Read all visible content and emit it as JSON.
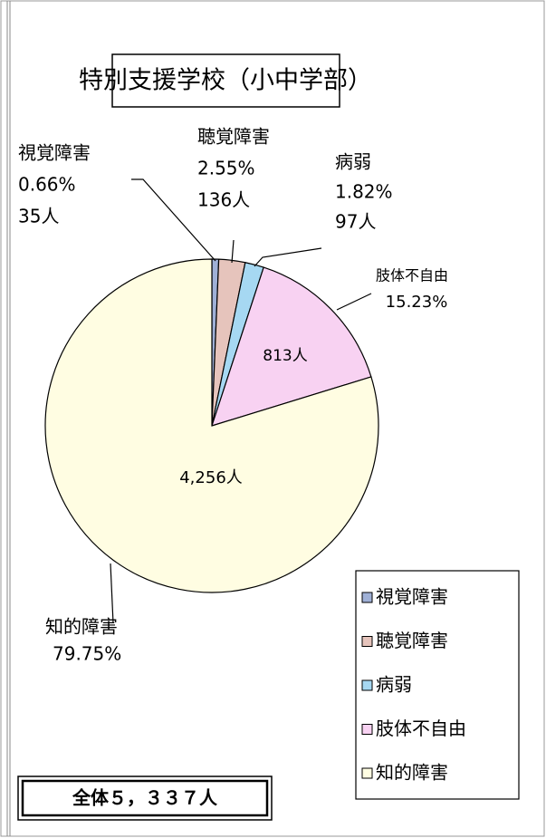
{
  "chart_data": {
    "type": "pie",
    "title": "特別支援学校（小中学部）",
    "categories": [
      "視覚障害",
      "聴覚障害",
      "病弱",
      "肢体不自由",
      "知的障害"
    ],
    "values": [
      0.66,
      2.55,
      1.82,
      15.23,
      79.75
    ],
    "value_labels": [
      "0.66%",
      "2.55%",
      "1.82%",
      "15.23%",
      "79.75%"
    ],
    "counts": [
      35,
      136,
      97,
      813,
      4256
    ],
    "count_labels": [
      "35人",
      "136人",
      "97人",
      "813人",
      "4,256人"
    ],
    "colors": [
      "#9fb0d6",
      "#e6c4bc",
      "#a6d8f2",
      "#f8d2f2",
      "#fffde2"
    ],
    "total": "全体５，３３７人",
    "legend": "right"
  }
}
